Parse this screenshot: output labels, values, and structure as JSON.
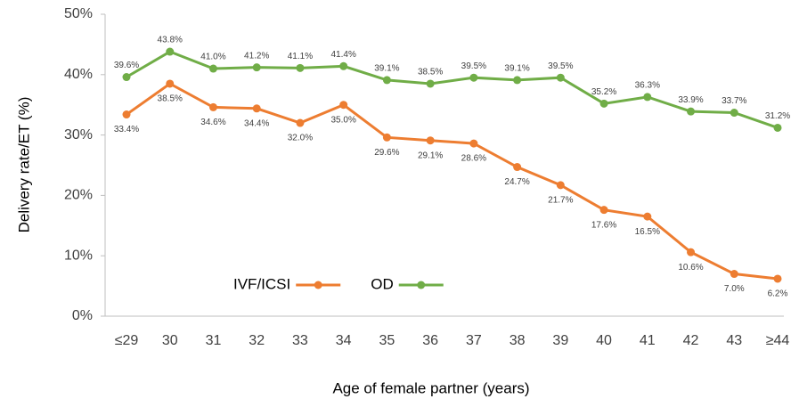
{
  "chart_data": {
    "type": "line",
    "xlabel": "Age of female partner (years)",
    "ylabel": "Delivery rate/ET (%)",
    "categories": [
      "≤29",
      "30",
      "31",
      "32",
      "33",
      "34",
      "35",
      "36",
      "37",
      "38",
      "39",
      "40",
      "41",
      "42",
      "43",
      "≥44"
    ],
    "series": [
      {
        "name": "IVF/ICSI",
        "color": "#ED7D31",
        "values": [
          33.4,
          38.5,
          34.6,
          34.4,
          32.0,
          35.0,
          29.6,
          29.1,
          28.6,
          24.7,
          21.7,
          17.6,
          16.5,
          10.6,
          7.0,
          6.2
        ],
        "value_labels": [
          "33.4%",
          "38.5%",
          "34.6%",
          "34.4%",
          "32.0%",
          "35.0%",
          "29.6%",
          "29.1%",
          "28.6%",
          "24.7%",
          "21.7%",
          "17.6%",
          "16.5%",
          "10.6%",
          "7.0%",
          "6.2%"
        ]
      },
      {
        "name": "OD",
        "color": "#70AD47",
        "values": [
          39.6,
          43.8,
          41.0,
          41.2,
          41.1,
          41.4,
          39.1,
          38.5,
          39.5,
          39.1,
          39.5,
          35.2,
          36.3,
          33.9,
          33.7,
          31.2
        ],
        "value_labels": [
          "39.6%",
          "43.8%",
          "41.0%",
          "41.2%",
          "41.1%",
          "41.4%",
          "39.1%",
          "38.5%",
          "39.5%",
          "39.1%",
          "39.5%",
          "35.2%",
          "36.3%",
          "33.9%",
          "33.7%",
          "31.2%"
        ]
      }
    ],
    "ylim": [
      0,
      50
    ],
    "yticks": [
      {
        "value": 0,
        "label": "0%"
      },
      {
        "value": 10,
        "label": "10%"
      },
      {
        "value": 20,
        "label": "20%"
      },
      {
        "value": 30,
        "label": "30%"
      },
      {
        "value": 40,
        "label": "40%"
      },
      {
        "value": 50,
        "label": "50%"
      }
    ],
    "grid": false,
    "legend": "lower left"
  }
}
